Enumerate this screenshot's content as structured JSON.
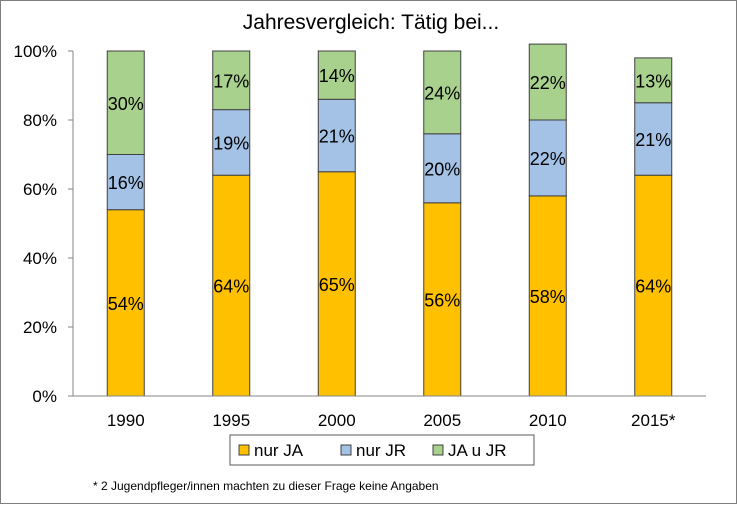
{
  "chart_data": {
    "type": "bar",
    "stacked": true,
    "title": "Jahresvergleich: Tätig bei...",
    "xlabel": "",
    "ylabel": "",
    "ylim": [
      0,
      100
    ],
    "yticks": [
      0,
      20,
      40,
      60,
      80,
      100
    ],
    "ytick_format": "percent",
    "grid": false,
    "legend_position": "bottom",
    "categories": [
      "1990",
      "1995",
      "2000",
      "2005",
      "2010",
      "2015*"
    ],
    "series": [
      {
        "name": "nur JA",
        "color": "#FFC000",
        "values": [
          54,
          64,
          65,
          56,
          58,
          64
        ]
      },
      {
        "name": "nur JR",
        "color": "#A4C2E6",
        "values": [
          16,
          19,
          21,
          20,
          22,
          21
        ]
      },
      {
        "name": "JA u JR",
        "color": "#A9D18E",
        "values": [
          30,
          17,
          14,
          24,
          22,
          13
        ]
      }
    ],
    "value_label_format": "percent",
    "edge_color": "#404040",
    "footnote": "* 2 Jugendpfleger/innen machten zu dieser Frage keine Angaben"
  }
}
